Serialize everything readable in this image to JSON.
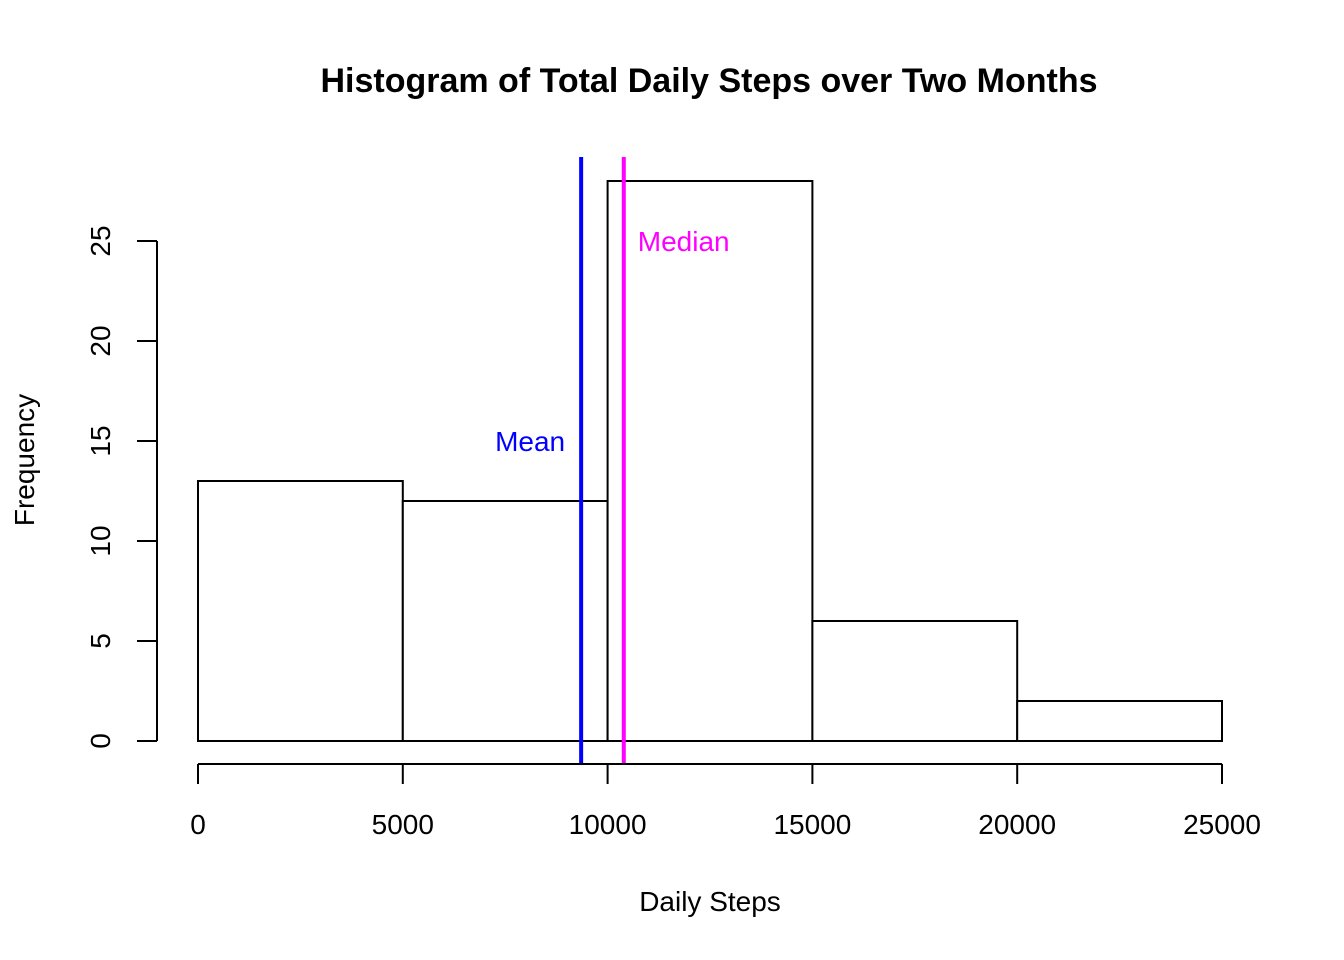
{
  "chart_data": {
    "type": "bar",
    "title": "Histogram of Total Daily Steps over Two Months",
    "xlabel": "Daily Steps",
    "ylabel": "Frequency",
    "bins": [
      {
        "from": 0,
        "to": 5000,
        "count": 13
      },
      {
        "from": 5000,
        "to": 10000,
        "count": 12
      },
      {
        "from": 10000,
        "to": 15000,
        "count": 28
      },
      {
        "from": 15000,
        "to": 20000,
        "count": 6
      },
      {
        "from": 20000,
        "to": 25000,
        "count": 2
      }
    ],
    "xlim": [
      0,
      25000
    ],
    "ylim": [
      0,
      28
    ],
    "x_ticks": [
      0,
      5000,
      10000,
      15000,
      20000,
      25000
    ],
    "y_ticks": [
      0,
      5,
      10,
      15,
      20,
      25
    ],
    "grid": false,
    "reference_lines": [
      {
        "label": "Mean",
        "value": 9354,
        "color": "#0000ff",
        "label_y": 15,
        "label_side": "left"
      },
      {
        "label": "Median",
        "value": 10395,
        "color": "#ff00ff",
        "label_y": 25,
        "label_side": "right"
      }
    ]
  }
}
